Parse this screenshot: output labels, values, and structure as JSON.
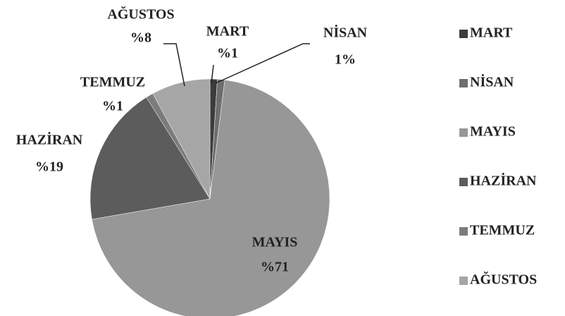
{
  "chart_data": {
    "type": "pie",
    "categories": [
      "MART",
      "NİSAN",
      "MAYIS",
      "HAZİRAN",
      "TEMMUZ",
      "AĞUSTOS"
    ],
    "values": [
      1,
      1,
      71,
      19,
      1,
      8
    ],
    "value_labels": [
      "%1",
      "1%",
      "%71",
      "%19",
      "%1",
      "%8"
    ],
    "colors": [
      "#3c3c3c",
      "#6e6e6e",
      "#979797",
      "#5c5c5c",
      "#7c7c7c",
      "#a6a6a6"
    ],
    "legend": "right"
  }
}
